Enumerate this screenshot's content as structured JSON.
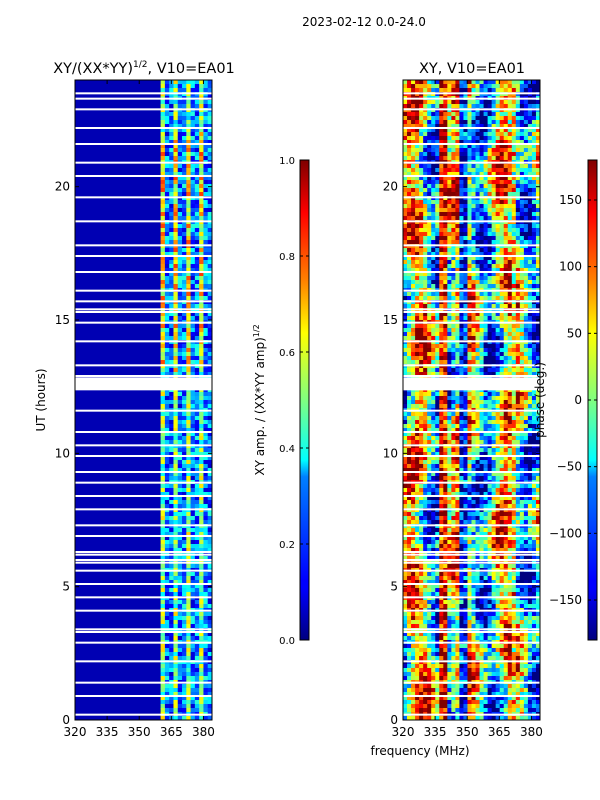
{
  "chart_data": {
    "type": "heatmap",
    "suptitle": "2023-02-12 0.0-24.0",
    "shared_xlabel": "frequency (MHz)",
    "panels": [
      {
        "id": "amp",
        "title_main": "XY/(XX*YY)",
        "title_sup": "1/2",
        "title_tail": ", V10=EA01",
        "ylabel": "UT (hours)",
        "xlim": [
          320,
          384
        ],
        "ylim": [
          0,
          24
        ],
        "xticks": [
          320,
          335,
          350,
          365,
          380
        ],
        "yticks": [
          0,
          5,
          10,
          15,
          20
        ],
        "colorbar": {
          "label_main": "XY amp. / (XX*YY amp)",
          "label_sup": "1/2",
          "range": [
            0.0,
            1.0
          ],
          "ticks": [
            "0.0",
            "0.2",
            "0.4",
            "0.6",
            "0.8",
            "1.0"
          ],
          "tick_values": [
            0.0,
            0.2,
            0.4,
            0.6,
            0.8,
            1.0
          ]
        },
        "dominant_value": 0.05,
        "active_band_mhz": [
          360,
          384
        ],
        "active_band_values": [
          0.3,
          0.5,
          0.7
        ]
      },
      {
        "id": "phase",
        "title": "XY, V10=EA01",
        "xlim": [
          320,
          384
        ],
        "ylim": [
          0,
          24
        ],
        "xticks": [
          320,
          335,
          350,
          365,
          380
        ],
        "yticks": [
          0,
          5,
          10,
          15,
          20
        ],
        "colorbar": {
          "label": "phase (deg.)",
          "range": [
            -180,
            180
          ],
          "ticks": [
            "−150",
            "−100",
            "−50",
            "0",
            "50",
            "100",
            "150"
          ],
          "tick_values": [
            -150,
            -100,
            -50,
            0,
            50,
            100,
            150
          ]
        },
        "value_range_deg": [
          -180,
          180
        ]
      }
    ],
    "flagged_ut_hours": [
      0.2,
      0.9,
      1.4,
      2.2,
      2.9,
      3.3,
      3.4,
      4.1,
      4.6,
      5.1,
      5.6,
      5.9,
      6.0,
      6.2,
      6.3,
      6.9,
      7.3,
      7.9,
      8.4,
      8.9,
      9.3,
      9.9,
      10.3,
      10.8,
      11.6,
      12.4,
      12.5,
      12.6,
      12.8,
      12.9,
      13.3,
      14.2,
      14.9,
      15.3,
      15.4,
      15.7,
      16.1,
      16.8,
      17.4,
      17.8,
      18.7,
      19.6,
      20.4,
      20.9,
      21.6,
      22.2,
      22.9,
      23.3,
      23.5
    ]
  }
}
